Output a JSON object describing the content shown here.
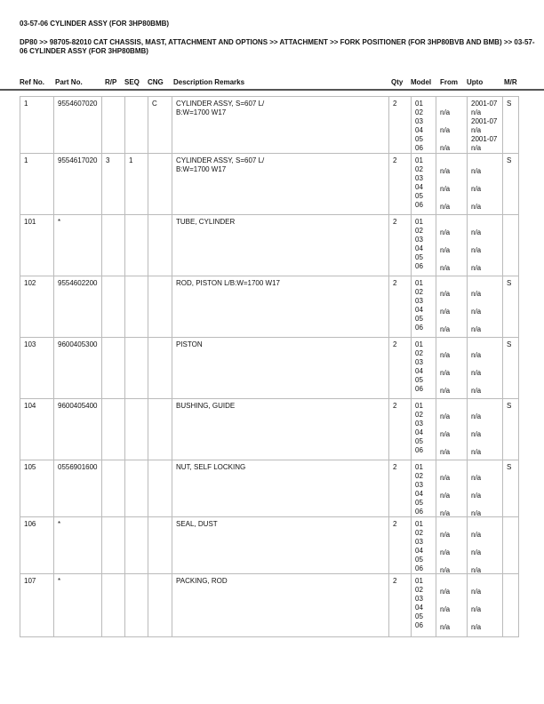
{
  "title": "03-57-06 CYLINDER ASSY (FOR 3HP80BMB)",
  "breadcrumb": "DP80 >> 98705-82010 CAT CHASSIS, MAST, ATTACHMENT AND OPTIONS >> ATTACHMENT >> FORK POSITIONER (FOR 3HP80BVB AND BMB) >> 03-57-06 CYLINDER ASSY (FOR 3HP80BMB)",
  "columns": [
    "Ref No.",
    "Part No.",
    "R/P",
    "SEQ",
    "CNG",
    "Description Remarks",
    "Qty",
    "Model",
    "From",
    "Upto",
    "M/R"
  ],
  "rows": [
    {
      "ref": "1",
      "part": "9554607020",
      "rp": "",
      "seq": "",
      "cng": "C",
      "desc": "CYLINDER ASSY, S=607 L/\nB:W=1700 W17",
      "qty": "2",
      "models": [
        "01",
        "02",
        "03",
        "04",
        "05",
        "06"
      ],
      "from": [
        "",
        "n/a",
        "",
        "n/a",
        "",
        "n/a"
      ],
      "upto": [
        "2001-07",
        "n/a",
        "2001-07",
        "n/a",
        "2001-07",
        "n/a"
      ],
      "mr": "S"
    },
    {
      "ref": "1",
      "part": "9554617020",
      "rp": "3",
      "seq": "1",
      "cng": "",
      "desc": "CYLINDER ASSY, S=607 L/\nB:W=1700 W17",
      "qty": "2",
      "models": [
        "01",
        "02",
        "03",
        "04",
        "05",
        "06"
      ],
      "from": [
        "",
        "n/a",
        "",
        "n/a",
        "",
        "n/a"
      ],
      "upto": [
        "",
        "n/a",
        "",
        "n/a",
        "",
        "n/a"
      ],
      "mr": "S"
    },
    {
      "ref": "101",
      "part": "*",
      "rp": "",
      "seq": "",
      "cng": "",
      "desc": "TUBE, CYLINDER",
      "qty": "2",
      "models": [
        "01",
        "02",
        "03",
        "04",
        "05",
        "06"
      ],
      "from": [
        "",
        "n/a",
        "",
        "n/a",
        "",
        "n/a"
      ],
      "upto": [
        "",
        "n/a",
        "",
        "n/a",
        "",
        "n/a"
      ],
      "mr": ""
    },
    {
      "ref": "102",
      "part": "9554602200",
      "rp": "",
      "seq": "",
      "cng": "",
      "desc": "ROD, PISTON L/B:W=1700 W17",
      "qty": "2",
      "models": [
        "01",
        "02",
        "03",
        "04",
        "05",
        "06"
      ],
      "from": [
        "",
        "n/a",
        "",
        "n/a",
        "",
        "n/a"
      ],
      "upto": [
        "",
        "n/a",
        "",
        "n/a",
        "",
        "n/a"
      ],
      "mr": "S"
    },
    {
      "ref": "103",
      "part": "9600405300",
      "rp": "",
      "seq": "",
      "cng": "",
      "desc": "PISTON",
      "qty": "2",
      "models": [
        "01",
        "02",
        "03",
        "04",
        "05",
        "06"
      ],
      "from": [
        "",
        "n/a",
        "",
        "n/a",
        "",
        "n/a"
      ],
      "upto": [
        "",
        "n/a",
        "",
        "n/a",
        "",
        "n/a"
      ],
      "mr": "S"
    },
    {
      "ref": "104",
      "part": "9600405400",
      "rp": "",
      "seq": "",
      "cng": "",
      "desc": "BUSHING, GUIDE",
      "qty": "2",
      "models": [
        "01",
        "02",
        "03",
        "04",
        "05",
        "06"
      ],
      "from": [
        "",
        "n/a",
        "",
        "n/a",
        "",
        "n/a"
      ],
      "upto": [
        "",
        "n/a",
        "",
        "n/a",
        "",
        "n/a"
      ],
      "mr": "S"
    },
    {
      "ref": "105",
      "part": "0556901600",
      "rp": "",
      "seq": "",
      "cng": "",
      "desc": "NUT, SELF LOCKING",
      "qty": "2",
      "models": [
        "01",
        "02",
        "03",
        "04",
        "05",
        "06"
      ],
      "from": [
        "",
        "n/a",
        "",
        "n/a",
        "",
        "n/a"
      ],
      "upto": [
        "",
        "n/a",
        "",
        "n/a",
        "",
        "n/a"
      ],
      "mr": "S"
    },
    {
      "ref": "106",
      "part": "*",
      "rp": "",
      "seq": "",
      "cng": "",
      "desc": "SEAL, DUST",
      "qty": "2",
      "models": [
        "01",
        "02",
        "03",
        "04",
        "05",
        "06"
      ],
      "from": [
        "",
        "n/a",
        "",
        "n/a",
        "",
        "n/a"
      ],
      "upto": [
        "",
        "n/a",
        "",
        "n/a",
        "",
        "n/a"
      ],
      "mr": ""
    },
    {
      "ref": "107",
      "part": "*",
      "rp": "",
      "seq": "",
      "cng": "",
      "desc": "PACKING, ROD",
      "qty": "2",
      "models": [
        "01",
        "02",
        "03",
        "04",
        "05",
        "06"
      ],
      "from": [
        "",
        "n/a",
        "",
        "n/a",
        "",
        "n/a"
      ],
      "upto": [
        "",
        "n/a",
        "",
        "n/a",
        "",
        "n/a"
      ],
      "mr": ""
    }
  ]
}
